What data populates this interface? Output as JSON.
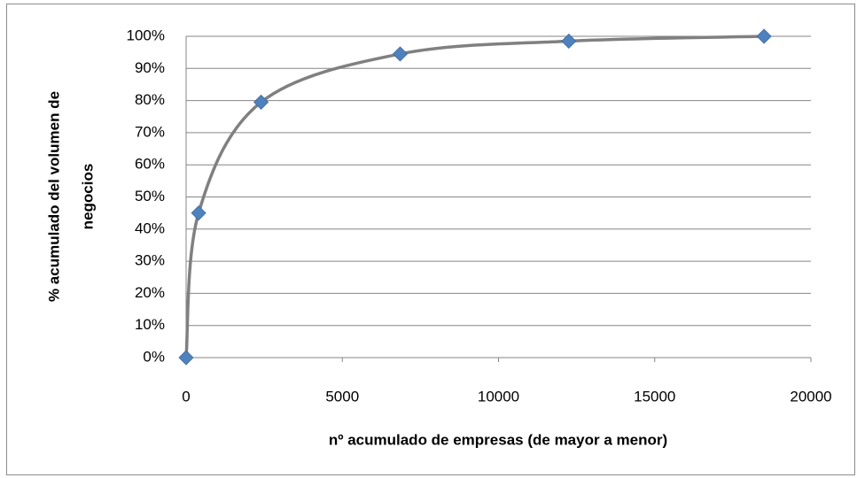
{
  "chart_data": {
    "type": "scatter",
    "x_label": "nº acumulado de empresas (de mayor a menor)",
    "y_label": [
      "% acumulado del volumen de",
      "negocios"
    ],
    "x": [
      0,
      400,
      2400,
      6850,
      12250,
      18500
    ],
    "values": [
      0,
      45,
      79.5,
      94.5,
      98.5,
      100
    ],
    "line_color": "#808080",
    "marker_color": "#4f81bd",
    "smooth": true,
    "xlim": [
      0,
      20000
    ],
    "xticks": [
      0,
      5000,
      10000,
      15000,
      20000
    ],
    "ylim": [
      0,
      100
    ],
    "yticks": [
      {
        "value": 0,
        "label": "0%"
      },
      {
        "value": 10,
        "label": "10%"
      },
      {
        "value": 20,
        "label": "20%"
      },
      {
        "value": 30,
        "label": "30%"
      },
      {
        "value": 40,
        "label": "40%"
      },
      {
        "value": 50,
        "label": "50%"
      },
      {
        "value": 60,
        "label": "60%"
      },
      {
        "value": 70,
        "label": "70%"
      },
      {
        "value": 80,
        "label": "80%"
      },
      {
        "value": 90,
        "label": "90%"
      },
      {
        "value": 100,
        "label": "100%"
      }
    ],
    "grid": true
  }
}
